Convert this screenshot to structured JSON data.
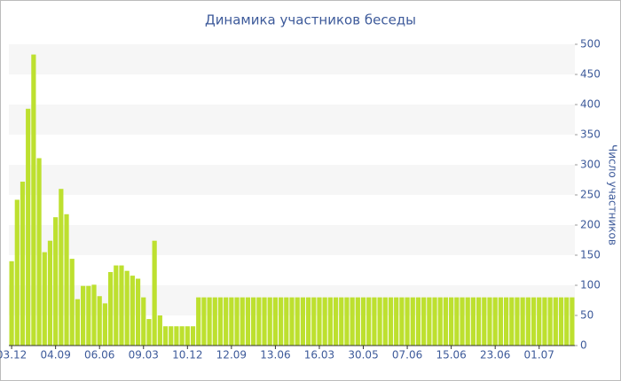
{
  "chart_data": {
    "type": "bar",
    "title": "Динамика участников беседы",
    "y_label": "Число участников",
    "categories": [
      "03.12",
      null,
      null,
      null,
      null,
      null,
      null,
      null,
      "04.09",
      null,
      null,
      null,
      null,
      null,
      null,
      null,
      "06.06",
      null,
      null,
      null,
      null,
      null,
      null,
      null,
      "09.03",
      null,
      null,
      null,
      null,
      null,
      null,
      null,
      "10.12",
      null,
      null,
      null,
      null,
      null,
      null,
      null,
      "12.09",
      null,
      null,
      null,
      null,
      null,
      null,
      null,
      "13.06",
      null,
      null,
      null,
      null,
      null,
      null,
      null,
      "16.03",
      null,
      null,
      null,
      null,
      null,
      null,
      null,
      "30.05",
      null,
      null,
      null,
      null,
      null,
      null,
      null,
      "07.06",
      null,
      null,
      null,
      null,
      null,
      null,
      null,
      "15.06",
      null,
      null,
      null,
      null,
      null,
      null,
      null,
      "23.06",
      null,
      null,
      null,
      null,
      null,
      null,
      null,
      "01.07",
      null,
      null,
      null,
      null,
      null,
      null
    ],
    "values": [
      140,
      242,
      272,
      393,
      483,
      311,
      155,
      174,
      213,
      260,
      218,
      144,
      77,
      99,
      99,
      101,
      82,
      70,
      122,
      133,
      133,
      124,
      116,
      111,
      80,
      44,
      174,
      50,
      32,
      32,
      32,
      32,
      32,
      32,
      80,
      80,
      80,
      80,
      80,
      80,
      80,
      80,
      80,
      80,
      80,
      80,
      80,
      80,
      80,
      80,
      80,
      80,
      80,
      80,
      80,
      80,
      80,
      80,
      80,
      80,
      80,
      80,
      80,
      80,
      80,
      80,
      80,
      80,
      80,
      80,
      80,
      80,
      80,
      80,
      80,
      80,
      80,
      80,
      80,
      80,
      80,
      80,
      80,
      80,
      80,
      80,
      80,
      80,
      80,
      80,
      80,
      80,
      80,
      80,
      80,
      80,
      80,
      80,
      80,
      80,
      80,
      80,
      80
    ],
    "color": "#bde02f",
    "ylim": [
      0,
      500
    ],
    "yticks": [
      0,
      50,
      100,
      150,
      200,
      250,
      300,
      350,
      400,
      450,
      500
    ],
    "grid": true
  }
}
